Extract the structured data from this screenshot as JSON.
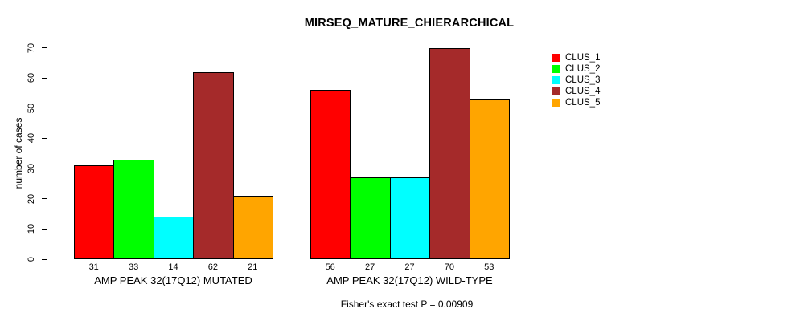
{
  "chart_data": {
    "type": "bar",
    "title": "MIRSEQ_MATURE_CHIERARCHICAL",
    "ylabel": "number of cases",
    "xlabel": "",
    "ylim": [
      0,
      70
    ],
    "yticks": [
      0,
      10,
      20,
      30,
      40,
      50,
      60,
      70
    ],
    "grid": false,
    "legend_position": "right",
    "bar_value_labels_shown": true,
    "groups": [
      {
        "label": "AMP PEAK 32(17Q12) MUTATED",
        "values": [
          31,
          33,
          14,
          62,
          21
        ]
      },
      {
        "label": "AMP PEAK 32(17Q12) WILD-TYPE",
        "values": [
          56,
          27,
          27,
          70,
          53
        ]
      }
    ],
    "series": [
      {
        "name": "CLUS_1",
        "color": "#FF0000"
      },
      {
        "name": "CLUS_2",
        "color": "#00FF00"
      },
      {
        "name": "CLUS_3",
        "color": "#00FFFF"
      },
      {
        "name": "CLUS_4",
        "color": "#A52A2A"
      },
      {
        "name": "CLUS_5",
        "color": "#FFA500"
      }
    ],
    "annotation": "Fisher's exact test P = 0.00909"
  }
}
